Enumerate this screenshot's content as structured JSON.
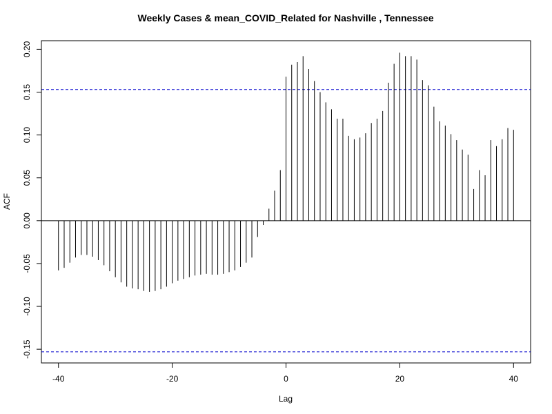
{
  "chart_data": {
    "type": "bar",
    "title": "Weekly Cases & mean_COVID_Related for Nashville , Tennessee",
    "xlabel": "Lag",
    "ylabel": "ACF",
    "xlim": [
      -43,
      43
    ],
    "ylim": [
      -0.166,
      0.21
    ],
    "x_ticks": [
      -40,
      -20,
      0,
      20,
      40
    ],
    "x_tick_labels": [
      "-40",
      "-20",
      "0",
      "20",
      "40"
    ],
    "y_ticks": [
      -0.15,
      -0.1,
      -0.05,
      0.0,
      0.05,
      0.1,
      0.15,
      0.2
    ],
    "y_tick_labels": [
      "-0.15",
      "-0.10",
      "-0.05",
      "0.00",
      "0.05",
      "0.10",
      "0.15",
      "0.20"
    ],
    "confidence_bounds": [
      0.153,
      -0.153
    ],
    "colors": {
      "bars": "#000000",
      "bounds": "#0000cd",
      "zero_line": "#000000",
      "frame": "#000000"
    },
    "lags": [
      -40,
      -39,
      -38,
      -37,
      -36,
      -35,
      -34,
      -33,
      -32,
      -31,
      -30,
      -29,
      -28,
      -27,
      -26,
      -25,
      -24,
      -23,
      -22,
      -21,
      -20,
      -19,
      -18,
      -17,
      -16,
      -15,
      -14,
      -13,
      -12,
      -11,
      -10,
      -9,
      -8,
      -7,
      -6,
      -5,
      -4,
      -3,
      -2,
      -1,
      0,
      1,
      2,
      3,
      4,
      5,
      6,
      7,
      8,
      9,
      10,
      11,
      12,
      13,
      14,
      15,
      16,
      17,
      18,
      19,
      20,
      21,
      22,
      23,
      24,
      25,
      26,
      27,
      28,
      29,
      30,
      31,
      32,
      33,
      34,
      35,
      36,
      37,
      38,
      39,
      40
    ],
    "values": [
      -0.058,
      -0.055,
      -0.049,
      -0.043,
      -0.04,
      -0.04,
      -0.042,
      -0.046,
      -0.052,
      -0.059,
      -0.066,
      -0.072,
      -0.077,
      -0.079,
      -0.08,
      -0.082,
      -0.083,
      -0.082,
      -0.08,
      -0.077,
      -0.073,
      -0.07,
      -0.068,
      -0.066,
      -0.064,
      -0.063,
      -0.062,
      -0.063,
      -0.063,
      -0.062,
      -0.06,
      -0.058,
      -0.054,
      -0.049,
      -0.043,
      -0.019,
      -0.005,
      0.014,
      0.035,
      0.059,
      0.168,
      0.182,
      0.185,
      0.192,
      0.177,
      0.163,
      0.15,
      0.138,
      0.13,
      0.119,
      0.119,
      0.099,
      0.095,
      0.097,
      0.102,
      0.114,
      0.119,
      0.128,
      0.161,
      0.183,
      0.196,
      0.192,
      0.192,
      0.188,
      0.164,
      0.158,
      0.133,
      0.116,
      0.111,
      0.101,
      0.094,
      0.083,
      0.077,
      0.037,
      0.059,
      0.053,
      0.094,
      0.087,
      0.095,
      0.108,
      0.106
    ]
  }
}
